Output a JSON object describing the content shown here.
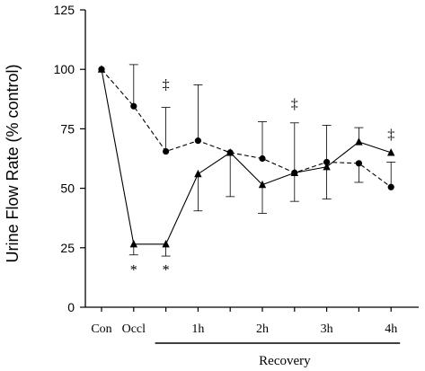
{
  "chart_data": {
    "type": "line",
    "ylabel": "Urine Flow Rate (% control)",
    "xlabel": "",
    "ylim": [
      0,
      125
    ],
    "yticks": [
      0,
      25,
      50,
      75,
      100,
      125
    ],
    "x_positions": [
      0,
      1,
      2,
      3,
      4,
      5,
      6,
      7,
      8,
      9
    ],
    "x_tick_labels": [
      {
        "x": 0,
        "label": "Con"
      },
      {
        "x": 1,
        "label": "Occl"
      },
      {
        "x": 3,
        "label": "1h"
      },
      {
        "x": 5,
        "label": "2h"
      },
      {
        "x": 7,
        "label": "3h"
      },
      {
        "x": 9,
        "label": "4h"
      }
    ],
    "group_label": {
      "text": "Recovery",
      "x_from": 2,
      "x_to": 9
    },
    "series": [
      {
        "marker": "circle",
        "line": "dashed",
        "values": [
          100,
          84.5,
          65.5,
          70,
          65,
          62.5,
          56.5,
          61,
          60.5,
          50.5
        ],
        "err": [
          0,
          17.5,
          18.5,
          23.5,
          0,
          15.5,
          21,
          15.5,
          8,
          10.5
        ],
        "err_dir": [
          "up",
          "up",
          "up",
          "up",
          "up",
          "up",
          "up",
          "up",
          "down",
          "up"
        ]
      },
      {
        "marker": "triangle",
        "line": "solid",
        "values": [
          100,
          26.5,
          26.5,
          56,
          65,
          51.5,
          56.5,
          59,
          69.5,
          65
        ],
        "err": [
          0,
          4.5,
          5,
          15.5,
          18.5,
          12,
          12,
          13.5,
          6,
          0
        ],
        "err_dir": [
          "down",
          "down",
          "down",
          "down",
          "down",
          "down",
          "down",
          "down",
          "up",
          "down"
        ]
      }
    ],
    "annotations": [
      {
        "text": "*",
        "x": 1,
        "y": 16
      },
      {
        "text": "*",
        "x": 2,
        "y": 16
      },
      {
        "text": "‡",
        "x": 2,
        "y": 94
      },
      {
        "text": "‡",
        "x": 6,
        "y": 86
      },
      {
        "text": "‡",
        "x": 9,
        "y": 73
      }
    ],
    "grid": false,
    "legend": "none"
  }
}
